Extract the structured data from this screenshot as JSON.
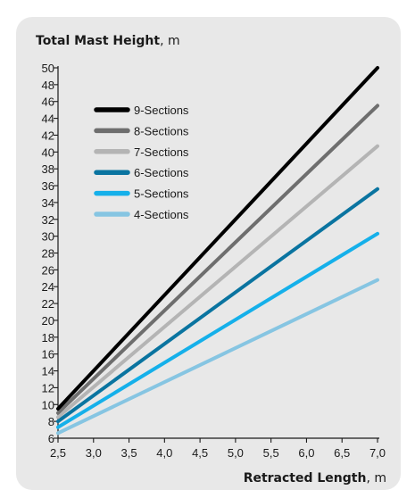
{
  "chart_data": {
    "type": "line",
    "title": "",
    "ylabel": "Total Mast Height",
    "ylabel_unit": ", m",
    "xlabel": "Retracted Length",
    "xlabel_unit": ", m",
    "xlim": [
      2.5,
      7.0
    ],
    "ylim": [
      6,
      50
    ],
    "x_ticks": [
      "2,5",
      "3,0",
      "3,5",
      "4,0",
      "4,5",
      "5,0",
      "5,5",
      "6,0",
      "6,5",
      "7,0"
    ],
    "x_tick_values": [
      2.5,
      3.0,
      3.5,
      4.0,
      4.5,
      5.0,
      5.5,
      6.0,
      6.5,
      7.0
    ],
    "y_ticks": [
      6,
      8,
      10,
      12,
      14,
      16,
      18,
      20,
      22,
      24,
      26,
      28,
      30,
      32,
      34,
      36,
      38,
      40,
      42,
      44,
      46,
      48,
      50
    ],
    "grid": false,
    "legend_position": "top-left",
    "series": [
      {
        "name": "9-Sections",
        "color": "#000000",
        "x": [
          2.5,
          7.0
        ],
        "y": [
          9.5,
          50
        ]
      },
      {
        "name": "8-Sections",
        "color": "#6e6e6e",
        "x": [
          2.5,
          7.0
        ],
        "y": [
          9.0,
          45.5
        ]
      },
      {
        "name": "7-Sections",
        "color": "#b4b4b4",
        "x": [
          2.5,
          7.0
        ],
        "y": [
          8.5,
          40.7
        ]
      },
      {
        "name": "6-Sections",
        "color": "#0a74a0",
        "x": [
          2.5,
          7.0
        ],
        "y": [
          8.0,
          35.6
        ]
      },
      {
        "name": "5-Sections",
        "color": "#15b0ea",
        "x": [
          2.5,
          7.0
        ],
        "y": [
          7.3,
          30.3
        ]
      },
      {
        "name": "4-Sections",
        "color": "#86c5e2",
        "x": [
          2.5,
          7.0
        ],
        "y": [
          6.6,
          24.8
        ]
      }
    ]
  }
}
